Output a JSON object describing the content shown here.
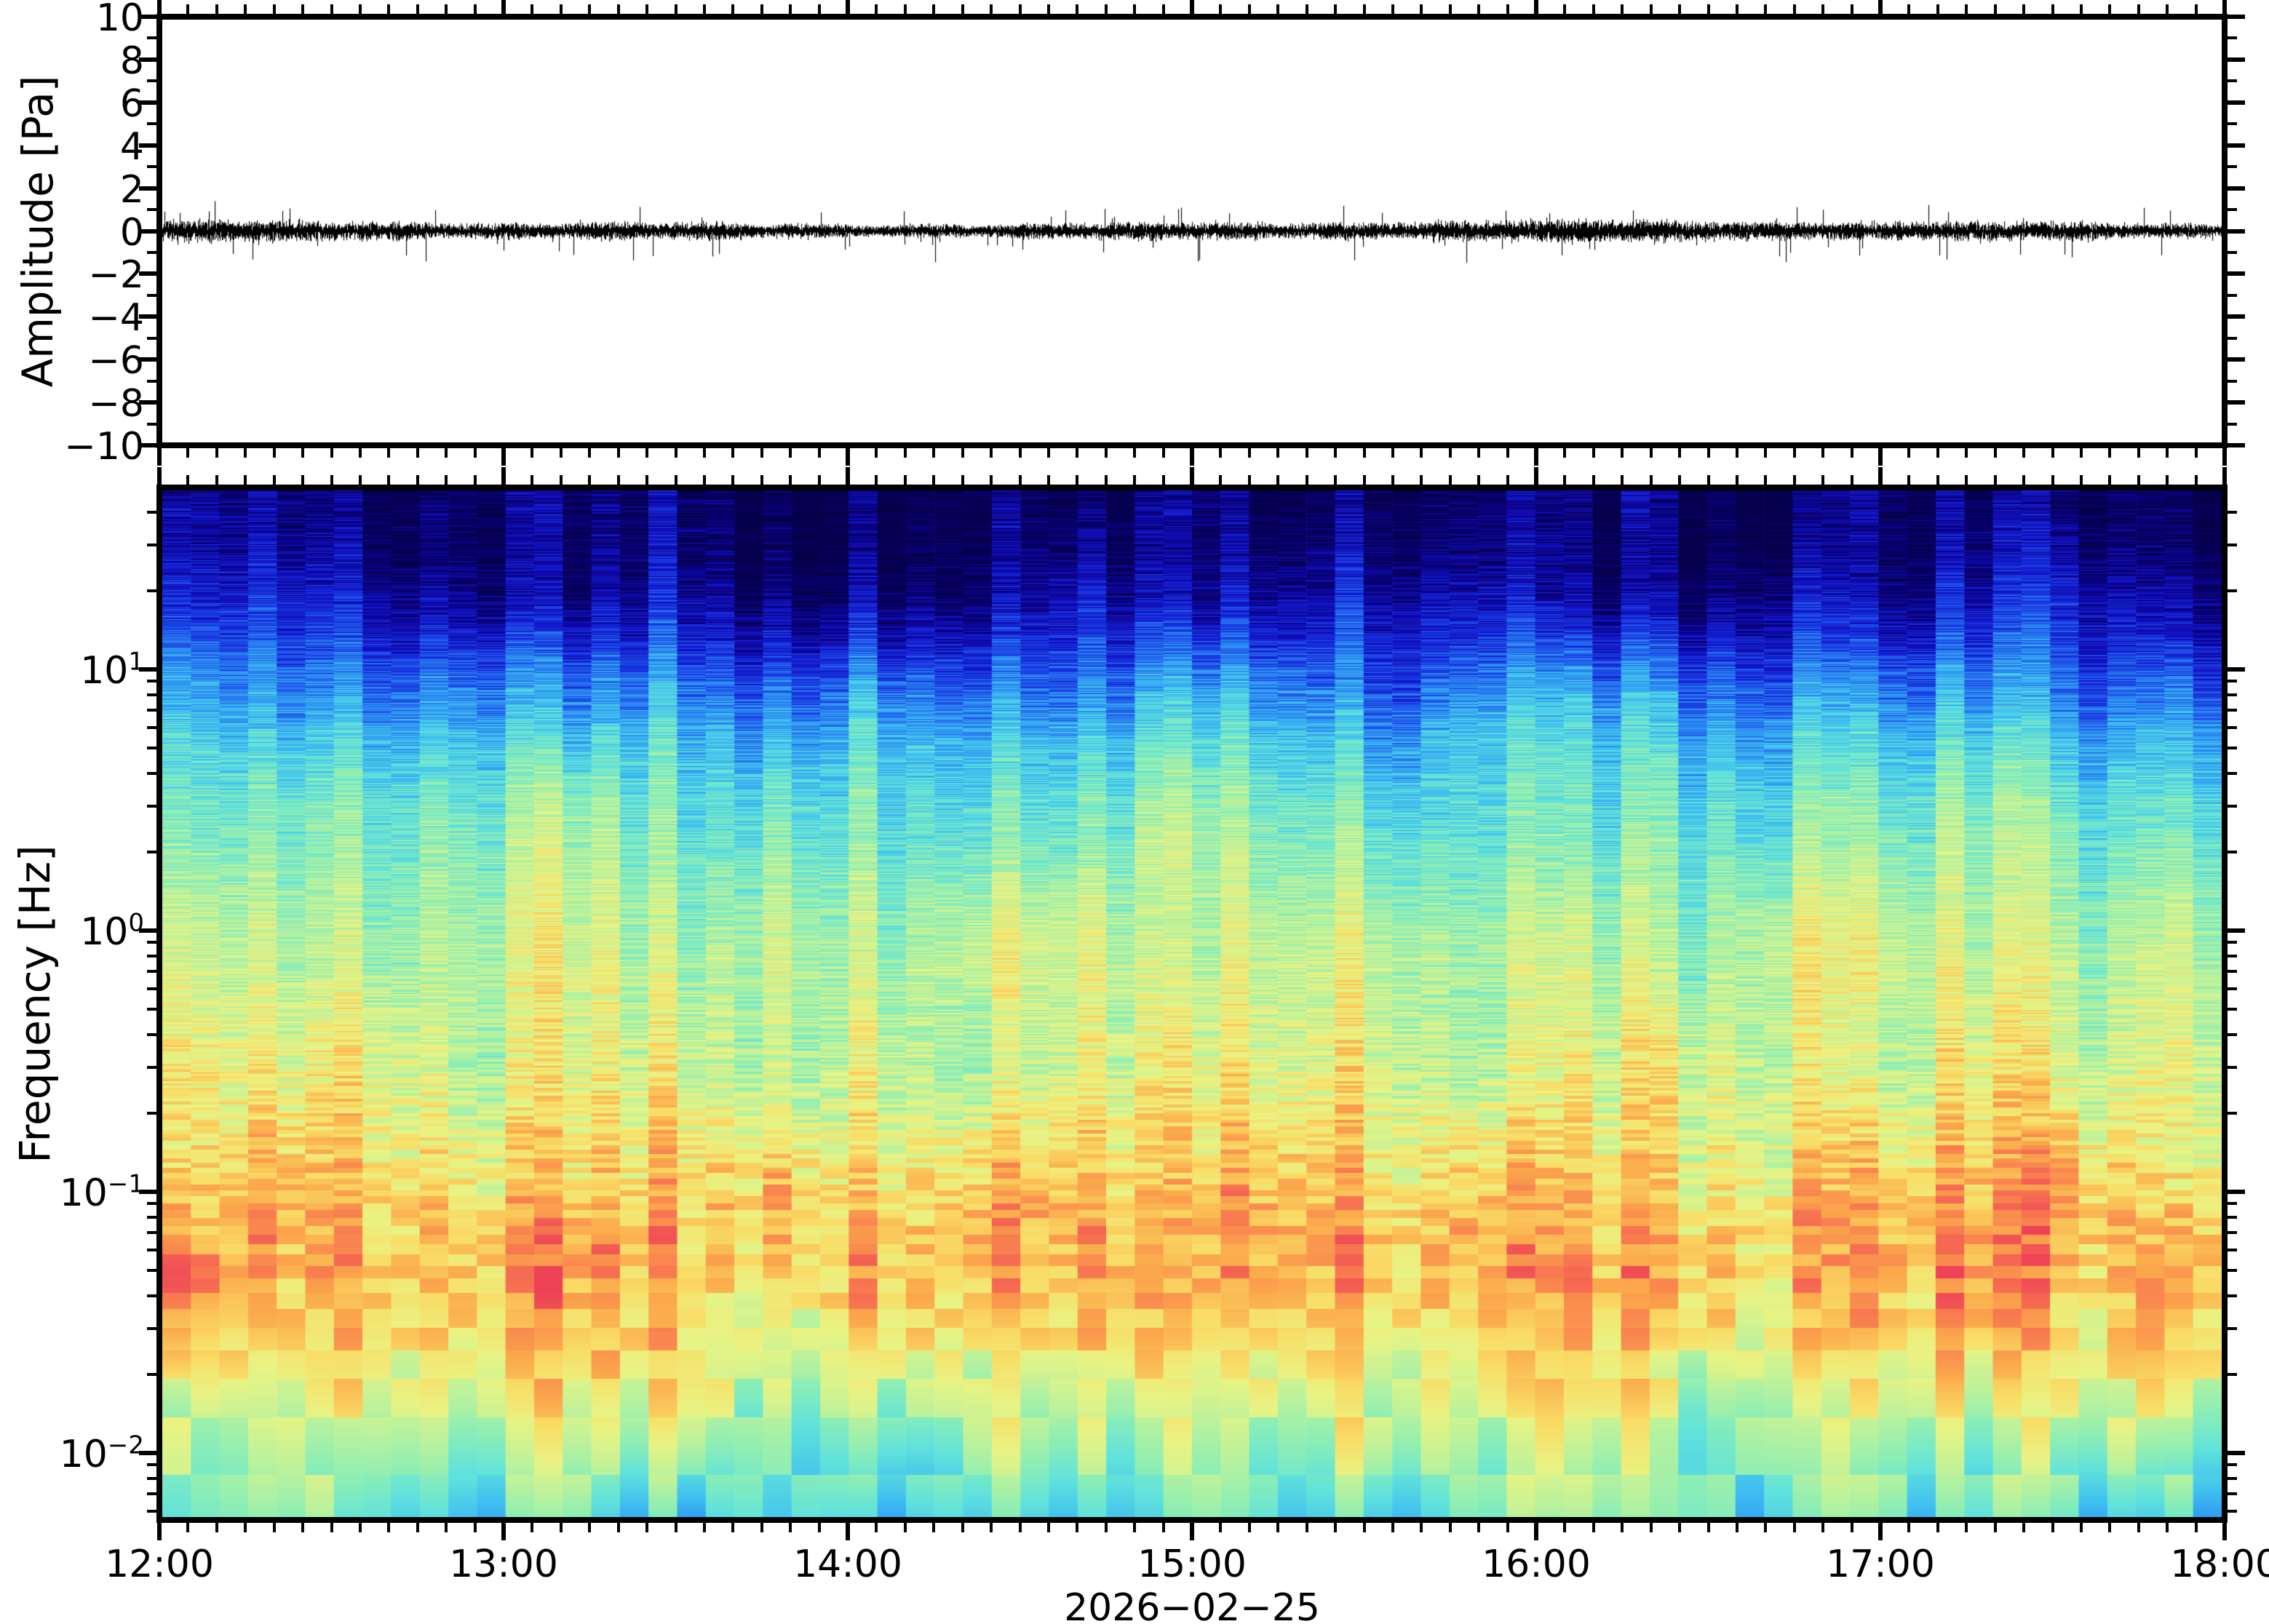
{
  "panels": {
    "waveform": {
      "ylabel": "Amplitude [Pa]"
    },
    "spectrogram": {
      "ylabel": "Frequency [Hz]"
    }
  },
  "xaxis": {
    "date_label": "2026−02−25",
    "hour_ticks": [
      {
        "minute": 0,
        "label": "12:00"
      },
      {
        "minute": 60,
        "label": "13:00"
      },
      {
        "minute": 120,
        "label": "14:00"
      },
      {
        "minute": 180,
        "label": "15:00"
      },
      {
        "minute": 240,
        "label": "16:00"
      },
      {
        "minute": 300,
        "label": "17:00"
      },
      {
        "minute": 360,
        "label": "18:00"
      }
    ],
    "minor_tick_minutes": 5,
    "total_minutes": 360
  },
  "waveform_yaxis": {
    "labels": [
      {
        "value": 10,
        "label": "10"
      },
      {
        "value": 8,
        "label": "8"
      },
      {
        "value": 6,
        "label": "6"
      },
      {
        "value": 4,
        "label": "4"
      },
      {
        "value": 2,
        "label": "2"
      },
      {
        "value": 0,
        "label": "0"
      },
      {
        "value": -2,
        "label": "−2"
      },
      {
        "value": -4,
        "label": "−4"
      },
      {
        "value": -6,
        "label": "−6"
      },
      {
        "value": -8,
        "label": "−8"
      },
      {
        "value": -10,
        "label": "−10"
      }
    ],
    "minor_interval": 1
  },
  "spectrogram_yaxis": {
    "decade_labels": [
      {
        "mantissa": "10",
        "exponent": "1"
      },
      {
        "mantissa": "10",
        "exponent": "0"
      },
      {
        "mantissa": "10",
        "exponent": "−1"
      },
      {
        "mantissa": "10",
        "exponent": "−2"
      }
    ],
    "decade_values": [
      1,
      0,
      -1,
      -2
    ]
  },
  "chart_data": [
    {
      "type": "line",
      "name": "acoustic-pressure-waveform",
      "ylabel": "Amplitude [Pa]",
      "ylim": [
        -10,
        10
      ],
      "ytick_interval": 2,
      "yminor_interval": 1,
      "x_start": "12:00",
      "x_end": "18:00",
      "x_date": "2026−02−25",
      "baseline_pa": 0,
      "noise_sigma_pa": 0.28,
      "typical_envelope_pa": 0.5,
      "max_spike_pa": 1.6,
      "line_color": "#000000",
      "seed": 20260225
    },
    {
      "type": "heatmap",
      "name": "infrasound-spectrogram",
      "ylabel": "Frequency [Hz]",
      "yscale": "log",
      "freq_top_hz": 50,
      "freq_bottom_hz": 0.0055,
      "freq_bin_hz": 0.0055,
      "time_bins": 72,
      "x_minor_tick_minutes": 5,
      "x_hour_ticks": [
        "12:00",
        "13:00",
        "14:00",
        "15:00",
        "16:00",
        "17:00",
        "18:00"
      ],
      "colormap_stops": [
        [
          0.0,
          "#05004a"
        ],
        [
          0.07,
          "#0a0080"
        ],
        [
          0.15,
          "#1212c8"
        ],
        [
          0.24,
          "#1c46e8"
        ],
        [
          0.32,
          "#2b8af2"
        ],
        [
          0.4,
          "#3fc0f0"
        ],
        [
          0.48,
          "#62e3da"
        ],
        [
          0.55,
          "#8deeb4"
        ],
        [
          0.62,
          "#bdf29b"
        ],
        [
          0.7,
          "#e9f383"
        ],
        [
          0.77,
          "#f9dc66"
        ],
        [
          0.85,
          "#fbaa4c"
        ],
        [
          0.93,
          "#f87b50"
        ],
        [
          1.0,
          "#ee4256"
        ]
      ],
      "power_profile_log10hz_to_unit": [
        [
          1.7,
          0.02
        ],
        [
          1.45,
          0.06
        ],
        [
          1.3,
          0.11
        ],
        [
          1.15,
          0.18
        ],
        [
          1.0,
          0.28
        ],
        [
          0.85,
          0.36
        ],
        [
          0.7,
          0.44
        ],
        [
          0.48,
          0.52
        ],
        [
          0.3,
          0.56
        ],
        [
          0.0,
          0.62
        ],
        [
          -0.3,
          0.655
        ],
        [
          -0.52,
          0.68
        ],
        [
          -0.8,
          0.745
        ],
        [
          -1.0,
          0.8
        ],
        [
          -1.15,
          0.835
        ],
        [
          -1.3,
          0.845
        ],
        [
          -1.5,
          0.8
        ],
        [
          -1.7,
          0.72
        ],
        [
          -1.9,
          0.63
        ],
        [
          -2.1,
          0.55
        ],
        [
          -2.26,
          0.48
        ]
      ],
      "noise_bin_amplitude": 0.16,
      "noise_column_amplitude": 0.085,
      "noise_blob_amplitude": 0.1,
      "seed": 1911
    }
  ]
}
